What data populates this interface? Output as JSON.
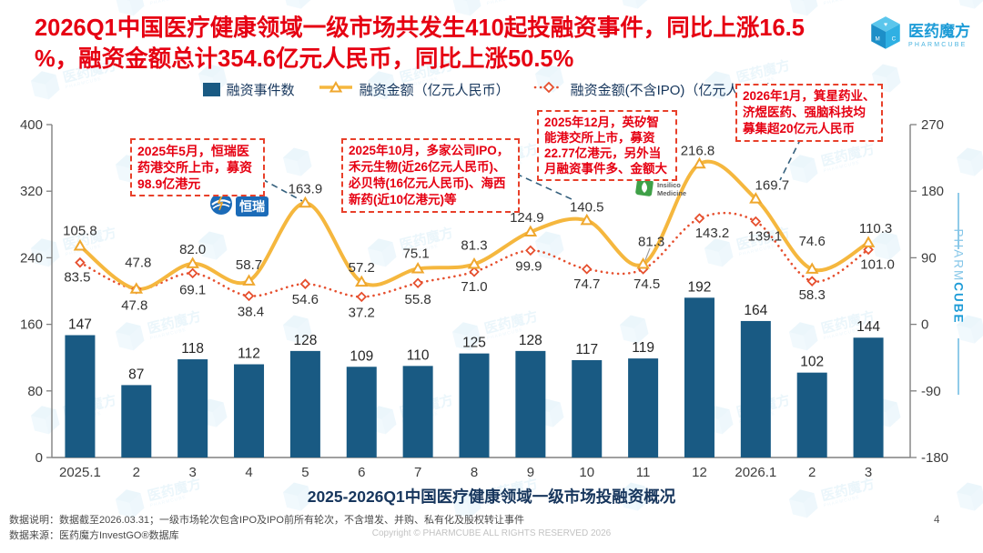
{
  "header": {
    "title_line1": "2026Q1中国医疗健康领域一级市场共发生410起投融资事件，同比上涨16.5",
    "title_line2": "%，融资金额总计354.6亿元人民币，同比上涨50.5%"
  },
  "logo": {
    "name": "医药魔方",
    "sub": "PHARMCUBE"
  },
  "side_brand": {
    "part1": "PHARM",
    "part2": "CUBE"
  },
  "legend": [
    {
      "label": "融资事件数",
      "color": "#195A83"
    },
    {
      "label": "融资金额（亿元人民币）",
      "color": "#F5B73E"
    },
    {
      "label": "融资金额(不含IPO)（亿元人民币）",
      "color": "#E64F2E"
    }
  ],
  "chart_data": {
    "type": "bar",
    "categories": [
      "2025.1",
      "2",
      "3",
      "4",
      "5",
      "6",
      "7",
      "8",
      "9",
      "10",
      "11",
      "12",
      "2026.1",
      "2",
      "3"
    ],
    "series": [
      {
        "name": "融资事件数",
        "type": "bar",
        "axis": "left",
        "color": "#195A83",
        "values": [
          147,
          87,
          118,
          112,
          128,
          109,
          110,
          125,
          128,
          117,
          119,
          192,
          164,
          102,
          144
        ]
      },
      {
        "name": "融资金额（亿元人民币）",
        "type": "line",
        "axis": "right",
        "color": "#F5B73E",
        "values": [
          105.8,
          47.8,
          82.0,
          58.7,
          163.9,
          57.2,
          75.1,
          81.3,
          124.9,
          140.5,
          81.3,
          216.8,
          169.7,
          74.6,
          110.3
        ]
      },
      {
        "name": "融资金额(不含IPO)（亿元人民币）",
        "type": "dotted-line",
        "axis": "right",
        "color": "#E64F2E",
        "values": [
          83.5,
          47.8,
          69.1,
          38.4,
          54.6,
          37.2,
          55.8,
          71.0,
          99.9,
          74.7,
          74.5,
          143.2,
          139.1,
          58.3,
          101.0
        ]
      }
    ],
    "left_axis": {
      "ticks": [
        0,
        80,
        160,
        240,
        320,
        400
      ],
      "range": [
        0,
        400
      ]
    },
    "right_axis": {
      "ticks": [
        -180,
        -90,
        0,
        90,
        180,
        270
      ],
      "range": [
        -180,
        270
      ]
    },
    "title": "2025-2026Q1中国医疗健康领域一级市场投融资概况",
    "legend_position": "top",
    "grid": false
  },
  "annotations": [
    {
      "text": "2025年5月，恒瑞医药港交所上市，募资98.9亿港元"
    },
    {
      "text": "2025年10月，多家公司IPO，禾元生物(近26亿元人民币)、必贝特(16亿元人民币)、海西新药(近10亿港元)等"
    },
    {
      "text": "2025年12月，英矽智能港交所上市，募资22.77亿港元，另外当月融资事件多、金额大"
    },
    {
      "text": "2026年1月，箕星药业、济煜医药、强脑科技均募集超20亿元人民币"
    }
  ],
  "inline_logos": {
    "hengrui": "恒瑞",
    "insilico_line1": "Insilico",
    "insilico_line2": "Medicine"
  },
  "footer": {
    "chart_title": "2025-2026Q1中国医疗健康领域一级市场投融资概况",
    "note_line": "数据说明：数据截至2026.03.31；一级市场轮次包含IPO及IPO前所有轮次，不含增发、并购、私有化及股权转让事件",
    "source_line": "数据来源：医药魔方InvestGO®数据库",
    "copyright": "Copyright © PHARMCUBE ALL RIGHTS RESERVED 2026",
    "page": "4"
  },
  "watermark": {
    "text": "医药魔方",
    "sub": "PHARMCUBE"
  }
}
